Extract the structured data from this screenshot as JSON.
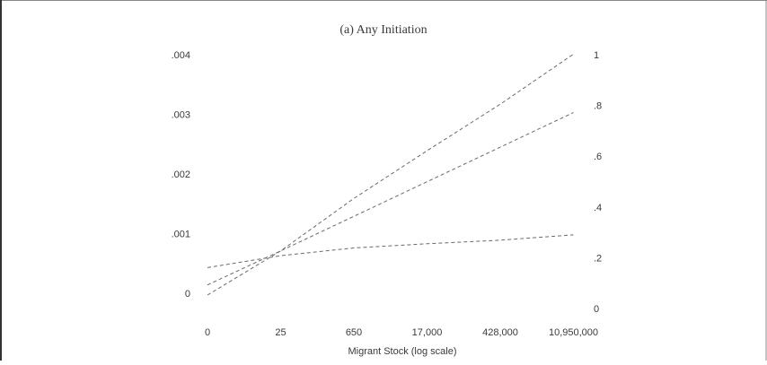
{
  "chart_data": {
    "type": "line",
    "title": "(a) Any Initiation",
    "xlabel": "Migrant Stock (log scale)",
    "ylabel": "",
    "x_scale": "log",
    "x_ticks": [
      "0",
      "25",
      "650",
      "17,000",
      "428,000",
      "10,950,000"
    ],
    "left_y_ticks": [
      "0",
      ".001",
      ".002",
      ".003",
      ".004"
    ],
    "right_y_ticks": [
      "0",
      ".2",
      ".4",
      ".6",
      ".8",
      "1"
    ],
    "left_ylim": [
      0,
      0.004
    ],
    "right_ylim": [
      0,
      1
    ],
    "grid": false,
    "line_style": "dashed",
    "series": [
      {
        "axis": "left",
        "x": [
          "0",
          "25",
          "650",
          "17,000",
          "428,000",
          "10,950,000"
        ],
        "values": [
          0.00014,
          0.00071,
          0.00129,
          0.00187,
          0.00245,
          0.00303
        ]
      },
      {
        "axis": "left",
        "x": [
          "0",
          "25",
          "650",
          "17,000",
          "428,000",
          "10,950,000"
        ],
        "values": [
          -3e-05,
          0.00071,
          0.00159,
          0.00239,
          0.00317,
          0.00401
        ]
      },
      {
        "axis": "left",
        "x": [
          "0",
          "25",
          "650",
          "17,000",
          "428,000",
          "10,950,000"
        ],
        "values": [
          0.00043,
          0.00063,
          0.00076,
          0.00083,
          0.00089,
          0.00098
        ]
      }
    ]
  }
}
